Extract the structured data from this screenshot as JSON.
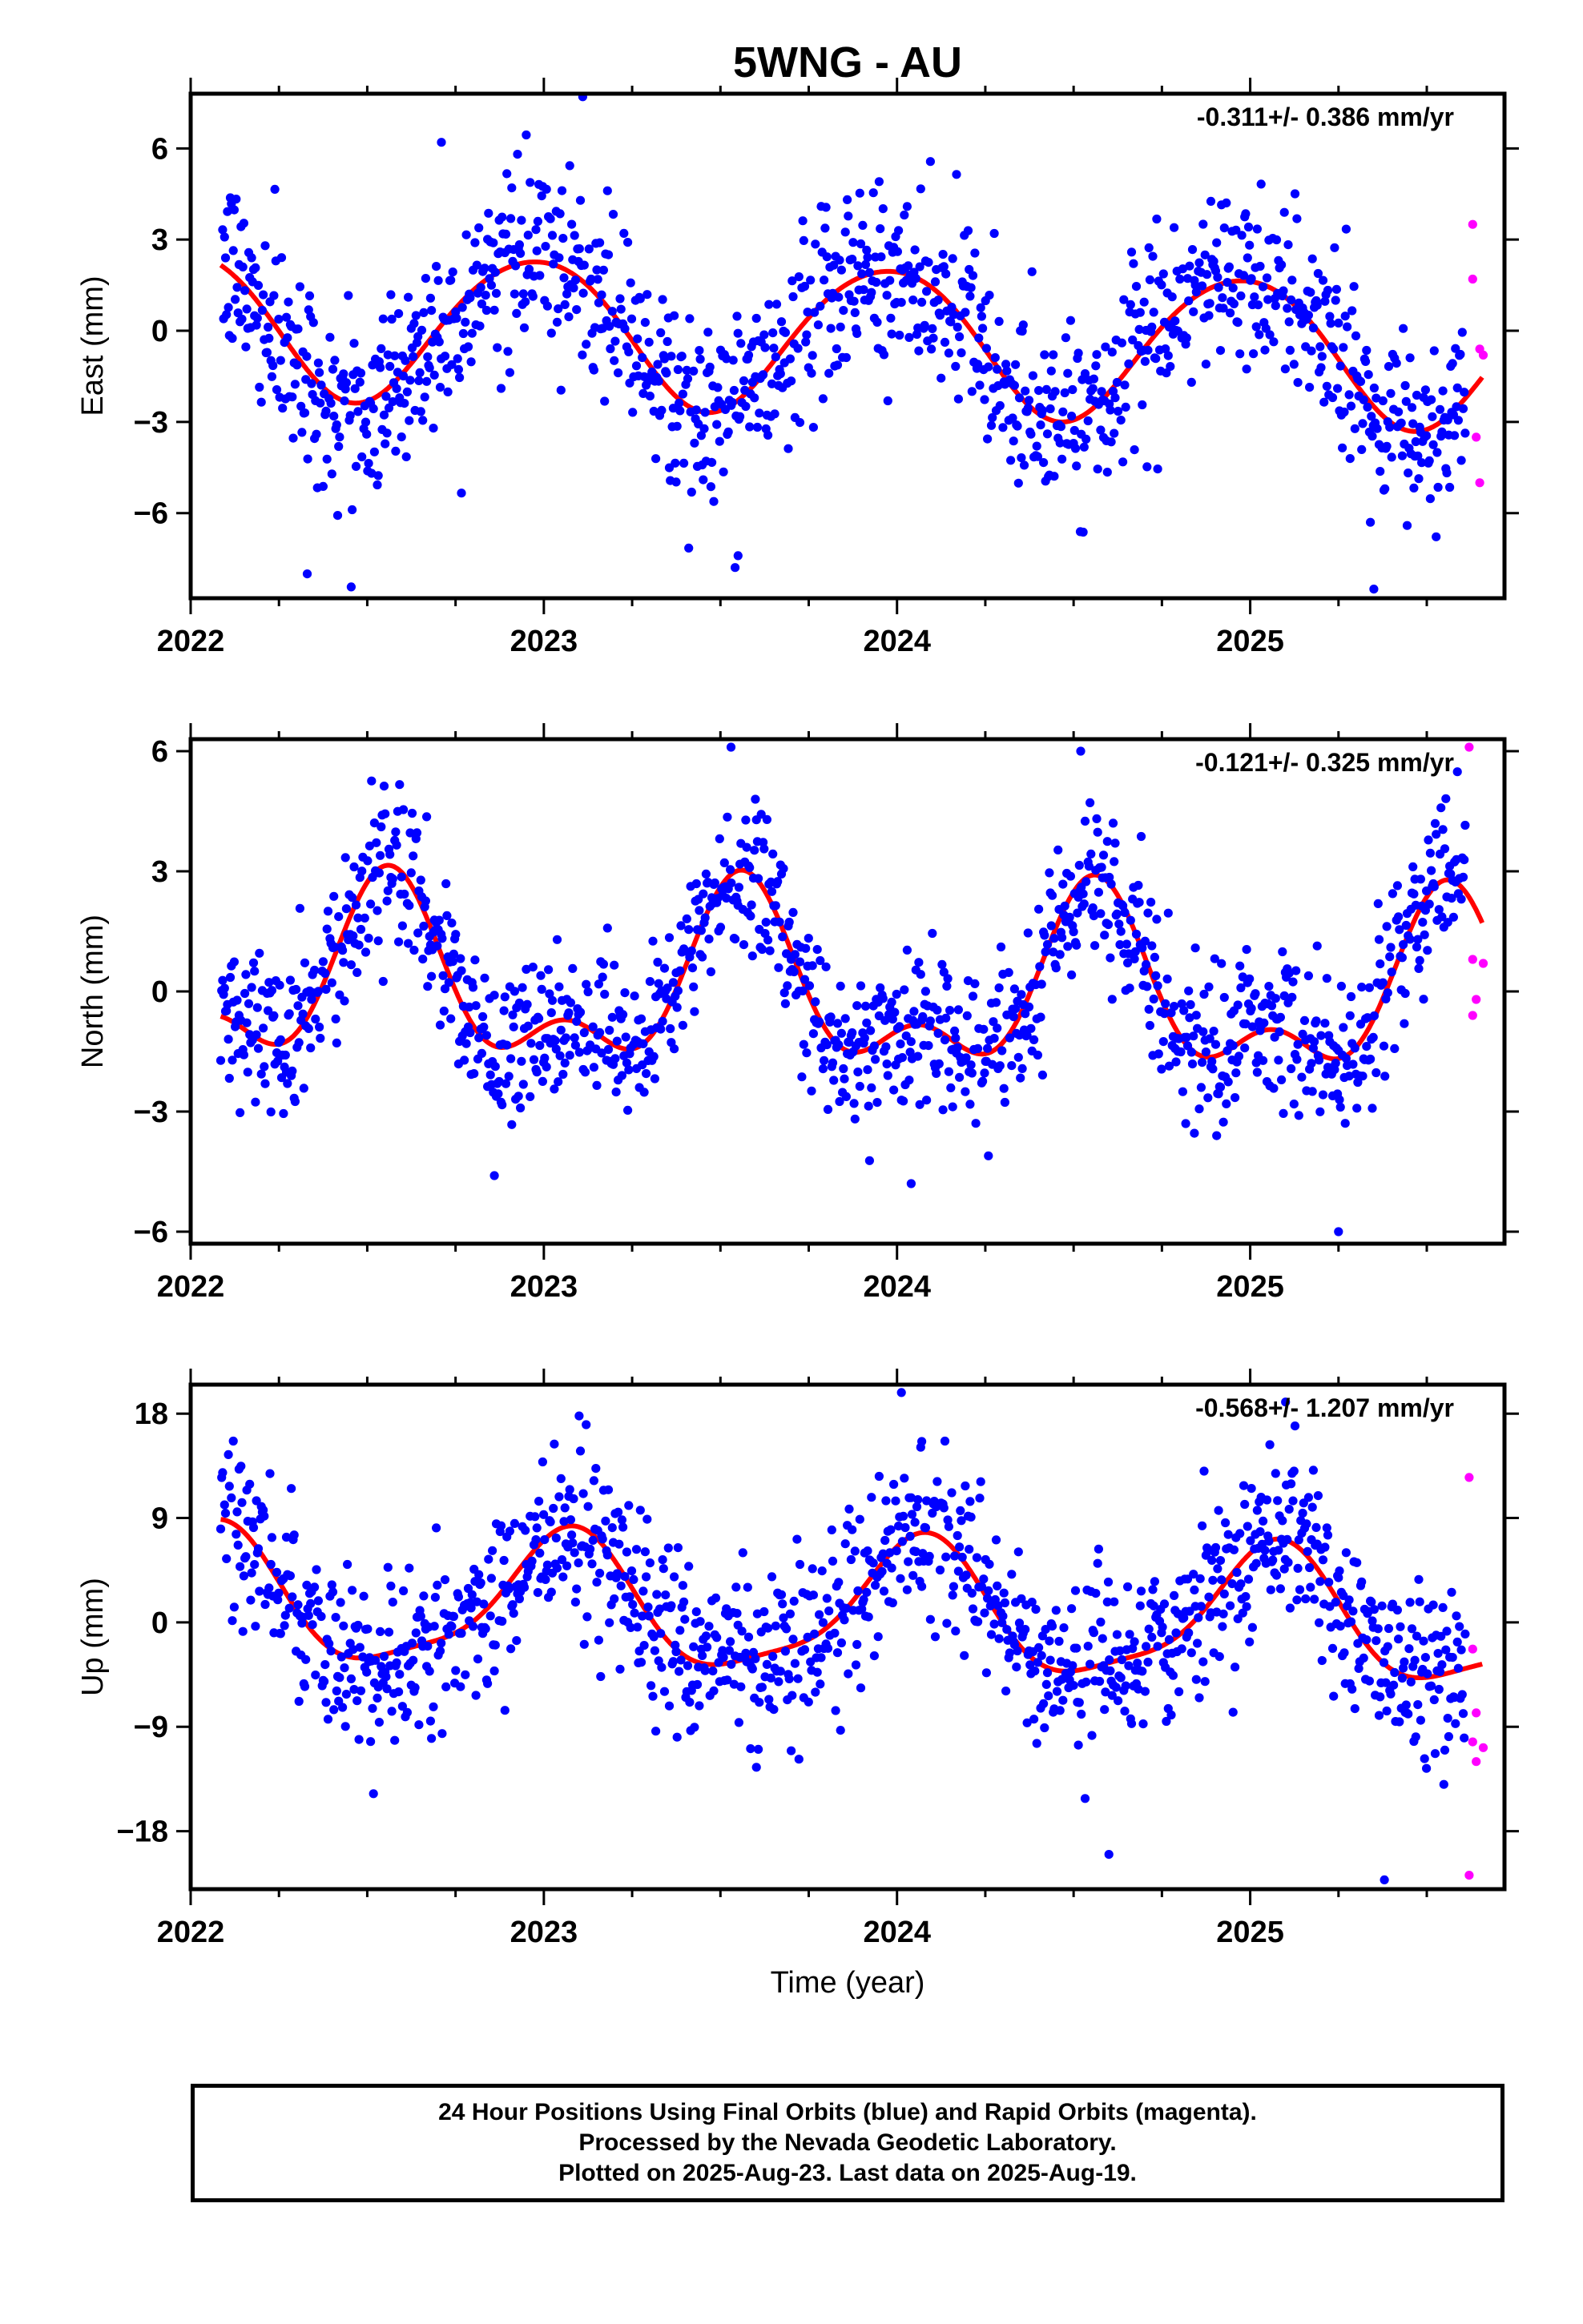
{
  "title": "5WNG - AU",
  "xlabel": "Time (year)",
  "colors": {
    "final": "#0000ff",
    "rapid": "#ff00ff",
    "fit": "#ff0000"
  },
  "footer": {
    "line1": "24 Hour Positions Using Final Orbits (blue) and Rapid Orbits (magenta).",
    "line2": "Processed by the Nevada Geodetic Laboratory.",
    "line3": "Plotted on 2025-Aug-23. Last data on 2025-Aug-19."
  },
  "chart_data": [
    {
      "type": "scatter",
      "component": "east",
      "ylabel": "East (mm)",
      "rate_label": "-0.311+/- 0.386 mm/yr",
      "xlim": [
        2022.0,
        2025.72
      ],
      "ylim": [
        -8.8,
        7.8
      ],
      "xticks": [
        2022,
        2023,
        2024,
        2025
      ],
      "yticks": [
        -6,
        -3,
        0,
        3,
        6
      ],
      "fit_model": {
        "offset": -0.2,
        "rate": -0.311,
        "annual_amp": 2.4,
        "annual_peak": 2022.97,
        "semiannual_amp": 0.2,
        "semiannual_peak": 2022.2
      },
      "scatter_sigma": 1.5,
      "rapid_points": [
        [
          2025.63,
          3.5
        ],
        [
          2025.63,
          1.7
        ],
        [
          2025.65,
          -0.6
        ],
        [
          2025.66,
          -0.8
        ],
        [
          2025.64,
          -3.5
        ],
        [
          2025.65,
          -5.0
        ]
      ],
      "notable_points": [
        [
          2023.11,
          7.7
        ],
        [
          2022.33,
          -8.0
        ],
        [
          2025.35,
          -8.5
        ],
        [
          2023.55,
          -7.4
        ],
        [
          2022.71,
          6.2
        ]
      ]
    },
    {
      "type": "scatter",
      "component": "north",
      "ylabel": "North (mm)",
      "rate_label": "-0.121+/- 0.325 mm/yr",
      "xlim": [
        2022.0,
        2025.72
      ],
      "ylim": [
        -6.3,
        6.3
      ],
      "xticks": [
        2022,
        2023,
        2024,
        2025
      ],
      "yticks": [
        -6,
        -3,
        0,
        3,
        6
      ],
      "fit_model": {
        "offset": 0.0,
        "rate": -0.121,
        "annual_amp": 1.9,
        "annual_peak": 2022.56,
        "semiannual_amp": 1.1,
        "semiannual_peak": 2022.56
      },
      "scatter_sigma": 1.0,
      "rapid_points": [
        [
          2025.62,
          6.1
        ],
        [
          2025.63,
          0.8
        ],
        [
          2025.66,
          0.7
        ],
        [
          2025.64,
          -0.2
        ],
        [
          2025.63,
          -0.6
        ]
      ],
      "notable_points": [
        [
          2023.53,
          6.1
        ],
        [
          2024.52,
          6.0
        ],
        [
          2025.25,
          -6.0
        ],
        [
          2022.86,
          -4.6
        ],
        [
          2024.04,
          -4.8
        ]
      ]
    },
    {
      "type": "scatter",
      "component": "up",
      "ylabel": "Up (mm)",
      "rate_label": "-0.568+/- 1.207 mm/yr",
      "xlim": [
        2022.0,
        2025.72
      ],
      "ylim": [
        -23.0,
        20.5
      ],
      "xticks": [
        2022,
        2023,
        2024,
        2025
      ],
      "yticks": [
        -18,
        -9,
        0,
        9,
        18
      ],
      "fit_model": {
        "offset": 1.0,
        "rate": -0.568,
        "annual_amp": 5.6,
        "annual_peak": 2022.06,
        "semiannual_amp": 1.4,
        "semiannual_peak": 2022.1
      },
      "scatter_sigma": 3.8,
      "rapid_points": [
        [
          2025.62,
          12.5
        ],
        [
          2025.63,
          -2.3
        ],
        [
          2025.64,
          -7.8
        ],
        [
          2025.63,
          -10.3
        ],
        [
          2025.66,
          -10.8
        ],
        [
          2025.64,
          -12.0
        ],
        [
          2025.62,
          -21.8
        ]
      ],
      "notable_points": [
        [
          2025.1,
          19.0
        ],
        [
          2023.1,
          17.8
        ],
        [
          2024.07,
          15.6
        ],
        [
          2024.6,
          -20.0
        ],
        [
          2025.38,
          -22.2
        ]
      ]
    }
  ]
}
